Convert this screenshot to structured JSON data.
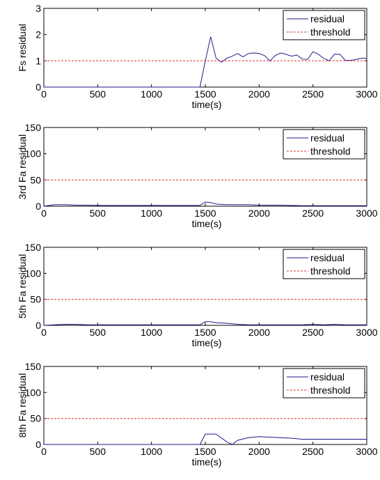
{
  "chart_data": [
    {
      "type": "line",
      "ylabel": "Fs residual",
      "xlabel": "time(s)",
      "xlim": [
        0,
        3000
      ],
      "ylim": [
        0,
        3
      ],
      "xticks": [
        0,
        500,
        1000,
        1500,
        2000,
        2500,
        3000
      ],
      "yticks": [
        0,
        1,
        2,
        3
      ],
      "legend_position": "top-right",
      "grid": false,
      "series": [
        {
          "name": "residual",
          "style": "solid",
          "color": "#1a1a8c",
          "x": [
            0,
            100,
            200,
            300,
            400,
            500,
            600,
            700,
            800,
            900,
            1000,
            1100,
            1200,
            1300,
            1400,
            1450,
            1500,
            1550,
            1600,
            1650,
            1700,
            1750,
            1800,
            1850,
            1900,
            1950,
            2000,
            2050,
            2100,
            2150,
            2200,
            2250,
            2300,
            2350,
            2400,
            2450,
            2500,
            2550,
            2600,
            2650,
            2700,
            2750,
            2800,
            2850,
            2900,
            2950,
            3000
          ],
          "y": [
            0,
            0,
            0,
            0,
            0,
            0,
            0,
            0,
            0,
            0,
            0,
            0,
            0,
            0,
            0,
            0,
            1.0,
            1.92,
            1.1,
            0.95,
            1.1,
            1.18,
            1.28,
            1.15,
            1.28,
            1.3,
            1.28,
            1.2,
            1.0,
            1.2,
            1.3,
            1.25,
            1.18,
            1.22,
            1.07,
            1.05,
            1.35,
            1.25,
            1.1,
            1.0,
            1.25,
            1.25,
            1.02,
            1.02,
            1.05,
            1.1,
            1.1
          ]
        },
        {
          "name": "threshold",
          "style": "dashed",
          "color": "#e03030",
          "x": [
            0,
            3000
          ],
          "y": [
            1,
            1
          ]
        }
      ]
    },
    {
      "type": "line",
      "ylabel": "3rd Fa residual",
      "xlabel": "time(s)",
      "xlim": [
        0,
        3000
      ],
      "ylim": [
        0,
        150
      ],
      "xticks": [
        0,
        500,
        1000,
        1500,
        2000,
        2500,
        3000
      ],
      "yticks": [
        0,
        50,
        100,
        150
      ],
      "legend_position": "top-right",
      "grid": false,
      "series": [
        {
          "name": "residual",
          "style": "solid",
          "color": "#1a1a8c",
          "x": [
            0,
            100,
            200,
            300,
            400,
            500,
            700,
            900,
            1100,
            1300,
            1450,
            1500,
            1550,
            1600,
            1700,
            1800,
            1900,
            2000,
            2200,
            2400,
            2600,
            2800,
            3000
          ],
          "y": [
            0,
            3,
            3,
            2,
            2,
            1.5,
            1.5,
            1.5,
            1.5,
            1.5,
            1.5,
            8,
            7,
            4,
            3,
            3,
            3,
            2,
            2,
            1,
            1,
            1,
            1
          ]
        },
        {
          "name": "threshold",
          "style": "dashed",
          "color": "#e03030",
          "x": [
            0,
            3000
          ],
          "y": [
            50,
            50
          ]
        }
      ]
    },
    {
      "type": "line",
      "ylabel": "5th Fa residual",
      "xlabel": "time(s)",
      "xlim": [
        0,
        3000
      ],
      "ylim": [
        0,
        150
      ],
      "xticks": [
        0,
        500,
        1000,
        1500,
        2000,
        2500,
        3000
      ],
      "yticks": [
        0,
        50,
        100,
        150
      ],
      "legend_position": "top-right",
      "grid": false,
      "series": [
        {
          "name": "residual",
          "style": "solid",
          "color": "#1a1a8c",
          "x": [
            0,
            100,
            200,
            300,
            400,
            500,
            700,
            900,
            1100,
            1300,
            1450,
            1500,
            1550,
            1600,
            1700,
            1800,
            1900,
            2000,
            2200,
            2400,
            2500,
            2600,
            2700,
            2800,
            3000
          ],
          "y": [
            0,
            1,
            2,
            2,
            1,
            1,
            1,
            1,
            1,
            1,
            1,
            7,
            7,
            5,
            4,
            2,
            1,
            1,
            1,
            1,
            2,
            1,
            2,
            1,
            1
          ]
        },
        {
          "name": "threshold",
          "style": "dashed",
          "color": "#e03030",
          "x": [
            0,
            3000
          ],
          "y": [
            50,
            50
          ]
        }
      ]
    },
    {
      "type": "line",
      "ylabel": "8th Fa residual",
      "xlabel": "time(s)",
      "xlim": [
        0,
        3000
      ],
      "ylim": [
        0,
        150
      ],
      "xticks": [
        0,
        500,
        1000,
        1500,
        2000,
        2500,
        3000
      ],
      "yticks": [
        0,
        50,
        100,
        150
      ],
      "legend_position": "top-right",
      "grid": false,
      "series": [
        {
          "name": "residual",
          "style": "solid",
          "color": "#1a1a8c",
          "x": [
            0,
            500,
            1000,
            1450,
            1500,
            1600,
            1700,
            1750,
            1800,
            1900,
            2000,
            2100,
            2200,
            2300,
            2400,
            2600,
            2800,
            3000
          ],
          "y": [
            0,
            0,
            0,
            0,
            20,
            20,
            5,
            0,
            8,
            13,
            15,
            14,
            13,
            12,
            10,
            10,
            10,
            10
          ]
        },
        {
          "name": "threshold",
          "style": "dashed",
          "color": "#e03030",
          "x": [
            0,
            3000
          ],
          "y": [
            50,
            50
          ]
        }
      ]
    }
  ]
}
